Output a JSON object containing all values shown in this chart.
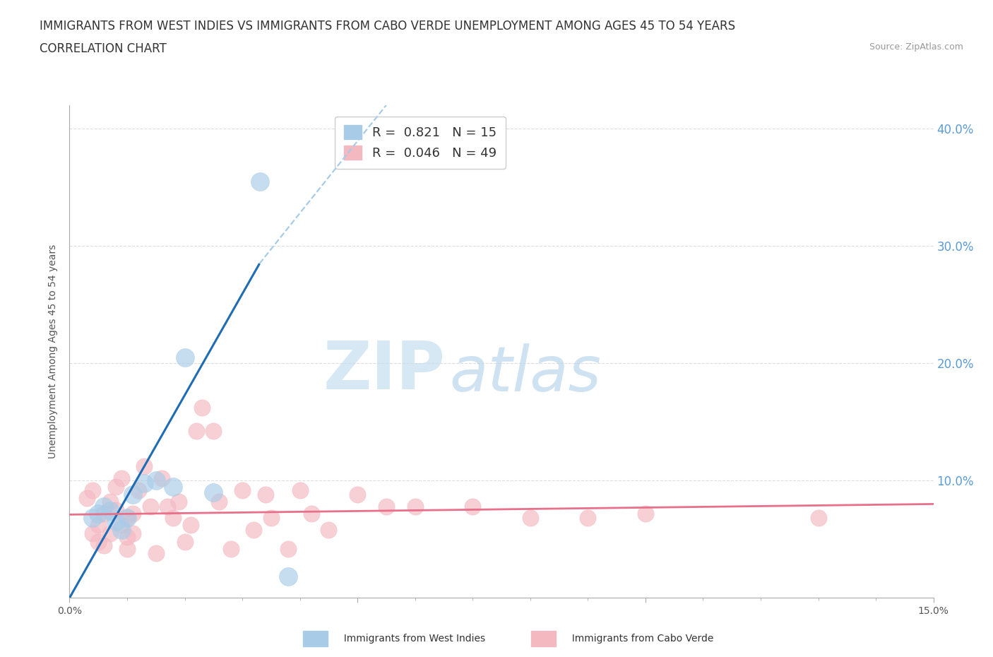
{
  "title_line1": "IMMIGRANTS FROM WEST INDIES VS IMMIGRANTS FROM CABO VERDE UNEMPLOYMENT AMONG AGES 45 TO 54 YEARS",
  "title_line2": "CORRELATION CHART",
  "source_text": "Source: ZipAtlas.com",
  "ylabel": "Unemployment Among Ages 45 to 54 years",
  "xlim": [
    0.0,
    0.15
  ],
  "ylim": [
    0.0,
    0.42
  ],
  "xticks_major": [
    0.0,
    0.05,
    0.1,
    0.15
  ],
  "xticks_minor": [
    0.01,
    0.02,
    0.03,
    0.04,
    0.06,
    0.07,
    0.08,
    0.09,
    0.11,
    0.12,
    0.13,
    0.14
  ],
  "yticks": [
    0.1,
    0.2,
    0.3,
    0.4
  ],
  "xtick_labels_bottom": {
    "0.0": "0.0%",
    "0.15": "15.0%"
  },
  "right_ytick_labels": [
    "10.0%",
    "20.0%",
    "30.0%",
    "40.0%"
  ],
  "west_indies_color": "#a8cce8",
  "cabo_verde_color": "#f4b8c1",
  "west_indies_R": 0.821,
  "west_indies_N": 15,
  "cabo_verde_R": 0.046,
  "cabo_verde_N": 49,
  "west_indies_scatter": [
    [
      0.004,
      0.068
    ],
    [
      0.005,
      0.072
    ],
    [
      0.006,
      0.078
    ],
    [
      0.007,
      0.074
    ],
    [
      0.008,
      0.065
    ],
    [
      0.009,
      0.058
    ],
    [
      0.01,
      0.068
    ],
    [
      0.011,
      0.088
    ],
    [
      0.013,
      0.098
    ],
    [
      0.015,
      0.1
    ],
    [
      0.018,
      0.095
    ],
    [
      0.02,
      0.205
    ],
    [
      0.025,
      0.09
    ],
    [
      0.033,
      0.355
    ],
    [
      0.038,
      0.018
    ]
  ],
  "cabo_verde_scatter": [
    [
      0.003,
      0.085
    ],
    [
      0.004,
      0.092
    ],
    [
      0.004,
      0.055
    ],
    [
      0.005,
      0.062
    ],
    [
      0.005,
      0.048
    ],
    [
      0.006,
      0.072
    ],
    [
      0.006,
      0.045
    ],
    [
      0.007,
      0.082
    ],
    [
      0.007,
      0.055
    ],
    [
      0.008,
      0.095
    ],
    [
      0.008,
      0.075
    ],
    [
      0.009,
      0.062
    ],
    [
      0.009,
      0.102
    ],
    [
      0.01,
      0.042
    ],
    [
      0.01,
      0.068
    ],
    [
      0.01,
      0.052
    ],
    [
      0.011,
      0.072
    ],
    [
      0.011,
      0.055
    ],
    [
      0.012,
      0.092
    ],
    [
      0.013,
      0.112
    ],
    [
      0.014,
      0.078
    ],
    [
      0.015,
      0.038
    ],
    [
      0.016,
      0.102
    ],
    [
      0.017,
      0.078
    ],
    [
      0.018,
      0.068
    ],
    [
      0.019,
      0.082
    ],
    [
      0.02,
      0.048
    ],
    [
      0.021,
      0.062
    ],
    [
      0.022,
      0.142
    ],
    [
      0.023,
      0.162
    ],
    [
      0.025,
      0.142
    ],
    [
      0.026,
      0.082
    ],
    [
      0.028,
      0.042
    ],
    [
      0.03,
      0.092
    ],
    [
      0.032,
      0.058
    ],
    [
      0.034,
      0.088
    ],
    [
      0.035,
      0.068
    ],
    [
      0.038,
      0.042
    ],
    [
      0.04,
      0.092
    ],
    [
      0.042,
      0.072
    ],
    [
      0.045,
      0.058
    ],
    [
      0.05,
      0.088
    ],
    [
      0.055,
      0.078
    ],
    [
      0.06,
      0.078
    ],
    [
      0.07,
      0.078
    ],
    [
      0.08,
      0.068
    ],
    [
      0.09,
      0.068
    ],
    [
      0.1,
      0.072
    ],
    [
      0.13,
      0.068
    ]
  ],
  "west_indies_line_solid": [
    [
      0.0,
      0.0
    ],
    [
      0.033,
      0.285
    ]
  ],
  "west_indies_line_dashed": [
    [
      0.033,
      0.285
    ],
    [
      0.055,
      0.42
    ]
  ],
  "cabo_verde_line": [
    [
      0.0,
      0.071
    ],
    [
      0.15,
      0.08
    ]
  ],
  "watermark_zip": "ZIP",
  "watermark_atlas": "atlas",
  "background_color": "#ffffff",
  "grid_color": "#dddddd",
  "title_fontsize": 12,
  "axis_label_fontsize": 10,
  "tick_fontsize": 10,
  "legend_fontsize": 13,
  "right_tick_color": "#5b9bd5",
  "trend_blue_color": "#1f6cb5",
  "trend_pink_color": "#e8708a",
  "trend_dashed_color": "#a8cce8"
}
